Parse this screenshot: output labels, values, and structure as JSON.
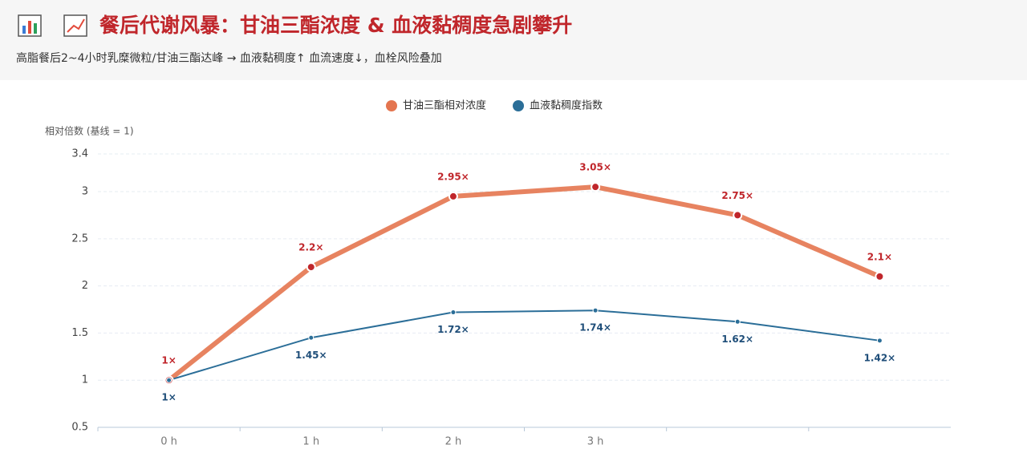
{
  "chart_data": {
    "type": "line",
    "title": "餐后代谢风暴：甘油三酯浓度 & 血液黏稠度急剧攀升",
    "subtitle": "高脂餐后2~4小时乳糜微粒/甘油三酯达峰 → 血液黏稠度↑ 血流速度↓，血栓风险叠加",
    "y_label": "相对倍数 (基线 = 1)",
    "categories": [
      "0 h",
      "1 h",
      "2 h",
      "3 h",
      null,
      null
    ],
    "series": [
      {
        "name": "甘油三酯相对浓度",
        "color": "#e4754f",
        "values": [
          1,
          2.2,
          2.95,
          3.05,
          2.75,
          2.1
        ],
        "value_labels": [
          "1×",
          "2.2×",
          "2.95×",
          "3.05×",
          "2.75×",
          "2.1×"
        ]
      },
      {
        "name": "血液黏稠度指数",
        "color": "#2b6e98",
        "values": [
          1,
          1.45,
          1.72,
          1.74,
          1.62,
          1.42
        ],
        "value_labels": [
          "1×",
          "1.45×",
          "1.72×",
          "1.74×",
          "1.62×",
          "1.42×"
        ]
      }
    ],
    "ylim": [
      0.5,
      3.4
    ],
    "yticks": [
      0.5,
      1,
      1.5,
      2,
      2.5,
      3,
      3.4
    ],
    "grid": true,
    "legend": "top"
  }
}
